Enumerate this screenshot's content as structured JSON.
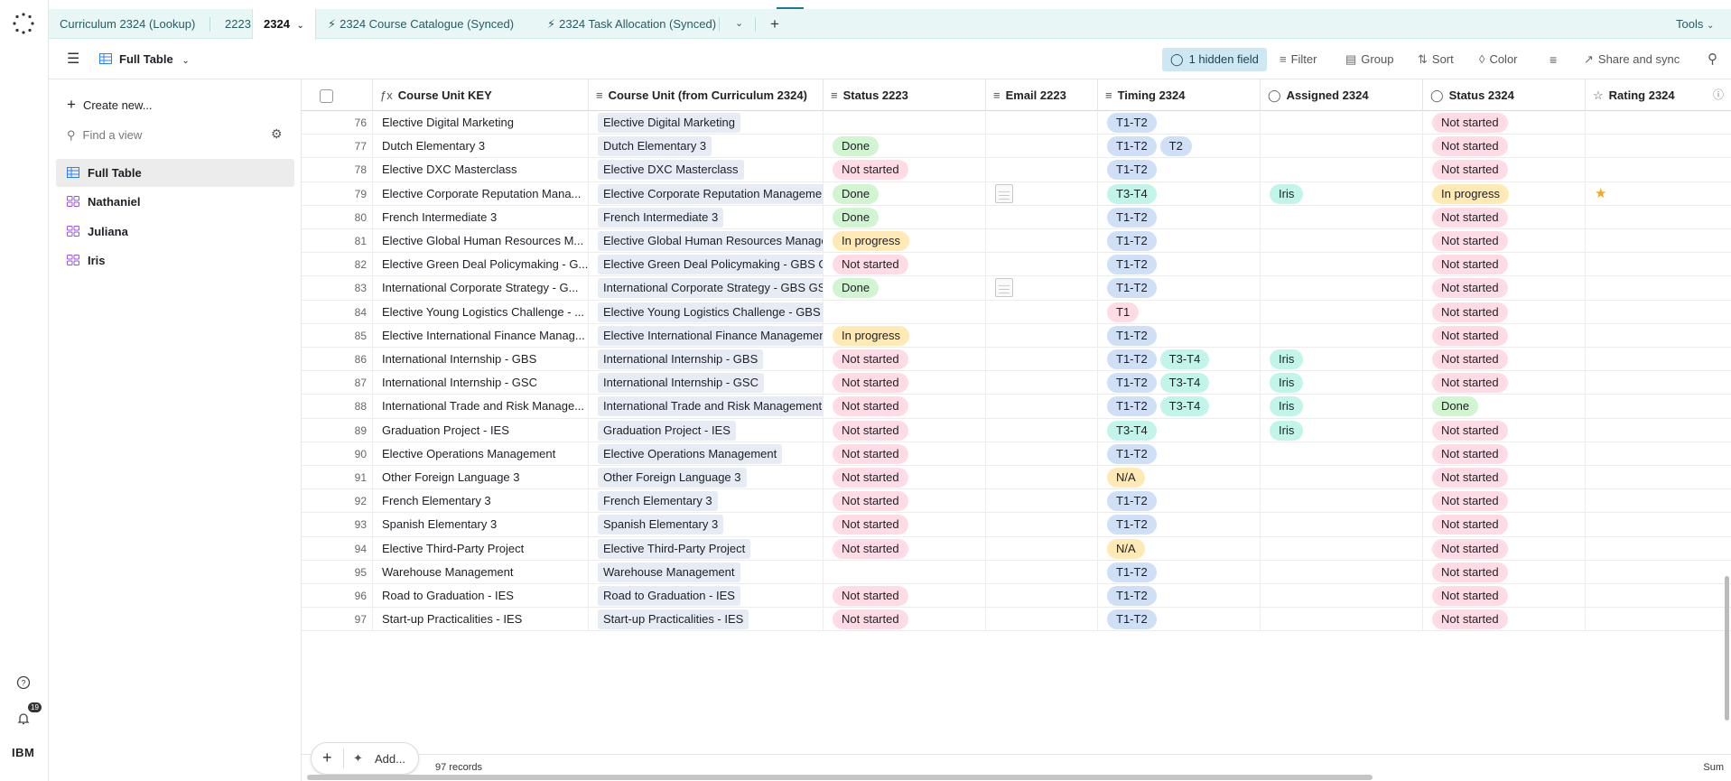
{
  "tabs": [
    {
      "label": "Curriculum 2324 (Lookup)"
    },
    {
      "label": "2223"
    },
    {
      "label": "2324"
    },
    {
      "label": "2324 Course Catalogue (Synced)"
    },
    {
      "label": "2324 Task Allocation (Synced)"
    }
  ],
  "tools_label": "Tools",
  "view": {
    "name": "Full Table",
    "hidden_fields": "1 hidden field",
    "filter": "Filter",
    "group": "Group",
    "sort": "Sort",
    "color": "Color",
    "share": "Share and sync"
  },
  "sidebar": {
    "create": "Create new...",
    "find_placeholder": "Find a view",
    "views": [
      {
        "label": "Full Table"
      },
      {
        "label": "Nathaniel"
      },
      {
        "label": "Juliana"
      },
      {
        "label": "Iris"
      }
    ]
  },
  "notifications_count": "19",
  "org_label": "IBM",
  "columns": [
    {
      "label": "Course Unit KEY",
      "icon": "formula-icon"
    },
    {
      "label": "Course Unit (from Curriculum 2324)",
      "icon": "lookup-icon"
    },
    {
      "label": "Status 2223",
      "icon": "lookup-icon"
    },
    {
      "label": "Email 2223",
      "icon": "lookup-icon"
    },
    {
      "label": "Timing 2324",
      "icon": "lookup-icon"
    },
    {
      "label": "Assigned 2324",
      "icon": "single-select-icon"
    },
    {
      "label": "Status 2324",
      "icon": "single-select-icon"
    },
    {
      "label": "Rating 2324",
      "icon": "star-icon"
    }
  ],
  "rows": [
    {
      "n": "76",
      "key": "Elective Digital Marketing",
      "unit": "Elective Digital Marketing",
      "s2223": "",
      "email": false,
      "timing": [
        "T1-T2"
      ],
      "assigned": "",
      "s2324": "Not started",
      "rating": false
    },
    {
      "n": "77",
      "key": "Dutch Elementary 3",
      "unit": "Dutch Elementary 3",
      "s2223": "Done",
      "email": false,
      "timing": [
        "T1-T2",
        "T2"
      ],
      "assigned": "",
      "s2324": "Not started",
      "rating": false
    },
    {
      "n": "78",
      "key": "Elective DXC Masterclass",
      "unit": "Elective DXC Masterclass",
      "s2223": "Not started",
      "email": false,
      "timing": [
        "T1-T2"
      ],
      "assigned": "",
      "s2324": "Not started",
      "rating": false
    },
    {
      "n": "79",
      "key": "Elective Corporate Reputation Mana...",
      "unit": "Elective Corporate Reputation Managemen",
      "s2223": "Done",
      "email": true,
      "timing": [
        "T3-T4"
      ],
      "assigned": "Iris",
      "s2324": "In progress",
      "rating": true
    },
    {
      "n": "80",
      "key": "French Intermediate 3",
      "unit": "French Intermediate 3",
      "s2223": "Done",
      "email": false,
      "timing": [
        "T1-T2"
      ],
      "assigned": "",
      "s2324": "Not started",
      "rating": false
    },
    {
      "n": "81",
      "key": "Elective Global Human Resources M...",
      "unit": "Elective Global Human Resources Managen",
      "s2223": "In progress",
      "email": false,
      "timing": [
        "T1-T2"
      ],
      "assigned": "",
      "s2324": "Not started",
      "rating": false
    },
    {
      "n": "82",
      "key": "Elective Green Deal Policymaking - G...",
      "unit": "Elective Green Deal Policymaking - GBS GS(",
      "s2223": "Not started",
      "email": false,
      "timing": [
        "T1-T2"
      ],
      "assigned": "",
      "s2324": "Not started",
      "rating": false
    },
    {
      "n": "83",
      "key": "International Corporate Strategy - G...",
      "unit": "International Corporate Strategy - GBS GSC",
      "s2223": "Done",
      "email": true,
      "timing": [
        "T1-T2"
      ],
      "assigned": "",
      "s2324": "Not started",
      "rating": false
    },
    {
      "n": "84",
      "key": "Elective Young Logistics Challenge - ...",
      "unit": "Elective Young Logistics Challenge - GBS G!",
      "s2223": "",
      "email": false,
      "timing": [
        "T1"
      ],
      "assigned": "",
      "s2324": "Not started",
      "rating": false
    },
    {
      "n": "85",
      "key": "Elective International Finance Manag...",
      "unit": "Elective International Finance Management",
      "s2223": "In progress",
      "email": false,
      "timing": [
        "T1-T2"
      ],
      "assigned": "",
      "s2324": "Not started",
      "rating": false
    },
    {
      "n": "86",
      "key": "International Internship - GBS",
      "unit": "International Internship - GBS",
      "s2223": "Not started",
      "email": false,
      "timing": [
        "T1-T2",
        "T3-T4"
      ],
      "assigned": "Iris",
      "s2324": "Not started",
      "rating": false
    },
    {
      "n": "87",
      "key": "International Internship - GSC",
      "unit": "International Internship - GSC",
      "s2223": "Not started",
      "email": false,
      "timing": [
        "T1-T2",
        "T3-T4"
      ],
      "assigned": "Iris",
      "s2324": "Not started",
      "rating": false
    },
    {
      "n": "88",
      "key": "International Trade and Risk Manage...",
      "unit": "International Trade and Risk Management -",
      "s2223": "Not started",
      "email": false,
      "timing": [
        "T1-T2",
        "T3-T4"
      ],
      "assigned": "Iris",
      "s2324": "Done",
      "rating": false
    },
    {
      "n": "89",
      "key": "Graduation Project - IES",
      "unit": "Graduation Project - IES",
      "s2223": "Not started",
      "email": false,
      "timing": [
        "T3-T4"
      ],
      "assigned": "Iris",
      "s2324": "Not started",
      "rating": false
    },
    {
      "n": "90",
      "key": "Elective Operations Management",
      "unit": "Elective Operations Management",
      "s2223": "Not started",
      "email": false,
      "timing": [
        "T1-T2"
      ],
      "assigned": "",
      "s2324": "Not started",
      "rating": false
    },
    {
      "n": "91",
      "key": "Other Foreign Language 3",
      "unit": "Other Foreign Language 3",
      "s2223": "Not started",
      "email": false,
      "timing": [
        "N/A"
      ],
      "assigned": "",
      "s2324": "Not started",
      "rating": false
    },
    {
      "n": "92",
      "key": "French Elementary 3",
      "unit": "French Elementary 3",
      "s2223": "Not started",
      "email": false,
      "timing": [
        "T1-T2"
      ],
      "assigned": "",
      "s2324": "Not started",
      "rating": false
    },
    {
      "n": "93",
      "key": "Spanish Elementary 3",
      "unit": "Spanish Elementary 3",
      "s2223": "Not started",
      "email": false,
      "timing": [
        "T1-T2"
      ],
      "assigned": "",
      "s2324": "Not started",
      "rating": false
    },
    {
      "n": "94",
      "key": "Elective Third-Party Project",
      "unit": "Elective Third-Party Project",
      "s2223": "Not started",
      "email": false,
      "timing": [
        "N/A"
      ],
      "assigned": "",
      "s2324": "Not started",
      "rating": false
    },
    {
      "n": "95",
      "key": "Warehouse Management",
      "unit": "Warehouse Management",
      "s2223": "",
      "email": false,
      "timing": [
        "T1-T2"
      ],
      "assigned": "",
      "s2324": "Not started",
      "rating": false
    },
    {
      "n": "96",
      "key": "Road to Graduation - IES",
      "unit": "Road to Graduation - IES",
      "s2223": "Not started",
      "email": false,
      "timing": [
        "T1-T2"
      ],
      "assigned": "",
      "s2324": "Not started",
      "rating": false
    },
    {
      "n": "97",
      "key": "Start-up Practicalities - IES",
      "unit": "Start-up Practicalities - IES",
      "s2223": "Not started",
      "email": false,
      "timing": [
        "T1-T2"
      ],
      "assigned": "",
      "s2324": "Not started",
      "rating": false
    }
  ],
  "footer": {
    "add_label": "Add...",
    "records": "97 records",
    "sum": "Sum"
  }
}
